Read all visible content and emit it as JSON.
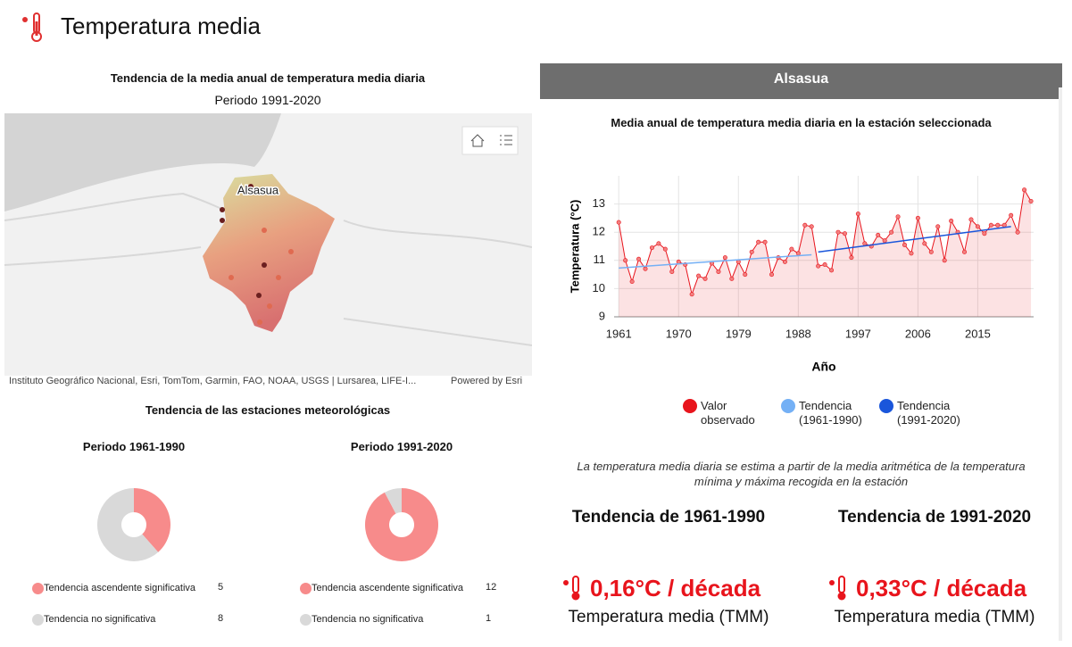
{
  "header": {
    "title": "Temperatura media"
  },
  "map": {
    "title": "Tendencia de la media anual de temperatura media diaria",
    "subtitle": "Periodo 1991-2020",
    "label": "Alsasua",
    "attribution": "Instituto Geográfico Nacional, Esri, TomTom, Garmin, FAO, NOAA, USGS | Lursarea, LIFE-I...",
    "powered": "Powered by Esri"
  },
  "stations": {
    "title": "Tendencia de las estaciones meteorológicas"
  },
  "panel": {
    "station": "Alsasua",
    "note": "La temperatura media diaria se estima a partir de la media aritmética de la temperatura mínima y máxima recogida en la estación",
    "trends": [
      {
        "heading": "Tendencia de 1961-1990",
        "value": "0,16°C / década",
        "label": "Temperatura media (TMM)"
      },
      {
        "heading": "Tendencia de 1991-2020",
        "value": "0,33°C / década",
        "label": "Temperatura media (TMM)"
      }
    ]
  },
  "chart_data": [
    {
      "type": "donut",
      "title": "Periodo 1961-1990",
      "categories": [
        "Tendencia ascendente significativa",
        "Tendencia no significativa"
      ],
      "values": [
        5,
        8
      ],
      "colors": [
        "#f78b8b",
        "#d9d9d9"
      ]
    },
    {
      "type": "donut",
      "title": "Periodo 1991-2020",
      "categories": [
        "Tendencia ascendente significativa",
        "Tendencia no significativa"
      ],
      "values": [
        12,
        1
      ],
      "colors": [
        "#f78b8b",
        "#d9d9d9"
      ]
    },
    {
      "type": "line",
      "title": "Media anual de temperatura media diaria en la estación seleccionada",
      "x_label": "Año",
      "y_label": "Temperatura (°C)",
      "x": [
        1961,
        1962,
        1963,
        1964,
        1965,
        1966,
        1967,
        1968,
        1969,
        1970,
        1971,
        1972,
        1973,
        1974,
        1975,
        1976,
        1977,
        1978,
        1979,
        1980,
        1981,
        1982,
        1983,
        1984,
        1985,
        1986,
        1987,
        1988,
        1989,
        1990,
        1991,
        1992,
        1993,
        1994,
        1995,
        1996,
        1997,
        1998,
        1999,
        2000,
        2001,
        2002,
        2003,
        2004,
        2005,
        2006,
        2007,
        2008,
        2009,
        2010,
        2011,
        2012,
        2013,
        2014,
        2015,
        2016,
        2017,
        2018,
        2019,
        2020,
        2021,
        2022,
        2023
      ],
      "series": [
        {
          "name": "Valor observado",
          "color": "#e8141c",
          "values": [
            12.35,
            11.0,
            10.25,
            11.05,
            10.7,
            11.45,
            11.6,
            11.4,
            10.6,
            10.95,
            10.85,
            9.8,
            10.45,
            10.35,
            10.9,
            10.6,
            11.1,
            10.35,
            10.95,
            10.5,
            11.3,
            11.65,
            11.65,
            10.5,
            11.1,
            10.95,
            11.4,
            11.25,
            12.25,
            12.2,
            10.8,
            10.85,
            10.65,
            12.0,
            11.95,
            11.1,
            12.65,
            11.6,
            11.5,
            11.9,
            11.7,
            12.0,
            12.55,
            11.55,
            11.25,
            12.5,
            11.6,
            11.3,
            12.2,
            11.0,
            12.4,
            12.0,
            11.3,
            12.45,
            12.2,
            11.95,
            12.25,
            12.25,
            12.25,
            12.6,
            12.0,
            13.5,
            13.1
          ]
        },
        {
          "name": "Tendencia (1961-1990)",
          "color": "#74b0f5",
          "x": [
            1961,
            1990
          ],
          "values": [
            10.73,
            11.2
          ]
        },
        {
          "name": "Tendencia (1991-2020)",
          "color": "#1a56db",
          "x": [
            1991,
            2020
          ],
          "values": [
            11.3,
            12.2
          ]
        }
      ],
      "xlim": [
        1960.3,
        2023.4
      ],
      "ylim": [
        9,
        14
      ],
      "xticks": [
        1961,
        1970,
        1979,
        1988,
        1997,
        2006,
        2015
      ],
      "yticks": [
        9,
        10,
        11,
        12,
        13
      ],
      "grid": true
    }
  ]
}
